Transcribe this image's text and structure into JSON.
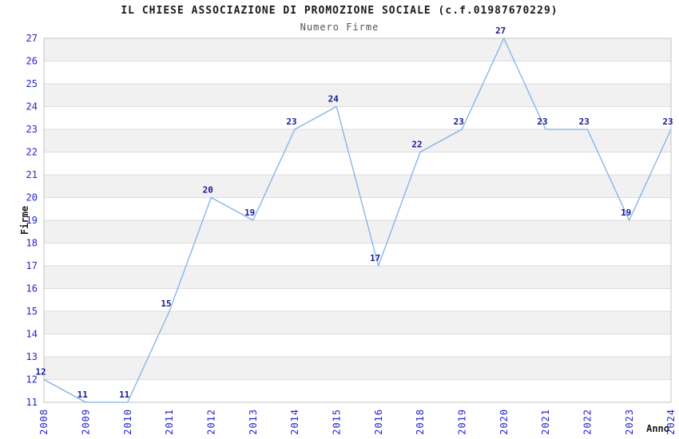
{
  "chart_data": {
    "type": "line",
    "title": "IL CHIESE ASSOCIAZIONE DI PROMOZIONE SOCIALE (c.f.01987670229)",
    "subtitle": "Numero Firme",
    "xlabel": "Anno",
    "ylabel": "Firme",
    "categories": [
      "2008",
      "2009",
      "2010",
      "2011",
      "2012",
      "2013",
      "2014",
      "2015",
      "2016",
      "2018",
      "2019",
      "2020",
      "2021",
      "2022",
      "2023",
      "2024"
    ],
    "values": [
      12,
      11,
      11,
      15,
      20,
      19,
      23,
      24,
      17,
      22,
      23,
      27,
      23,
      23,
      19,
      23
    ],
    "ylim": [
      11,
      27
    ],
    "ytick_step": 1,
    "xtick_rotation": -90,
    "grid": "horizontal",
    "alternating_row_bands": true,
    "markers": "none",
    "legend": "none",
    "colors": {
      "line": "#7fb2e8",
      "point_label": "#181899",
      "tick_label": "#2323cd",
      "band": "#f1f1f1",
      "gridline": "#dcdcdc",
      "plot_border": "#c4c4c4",
      "title": "#1a1a1a",
      "subtitle": "#555555",
      "axis_title": "#1a1a1a",
      "background": "#ffffff"
    }
  }
}
